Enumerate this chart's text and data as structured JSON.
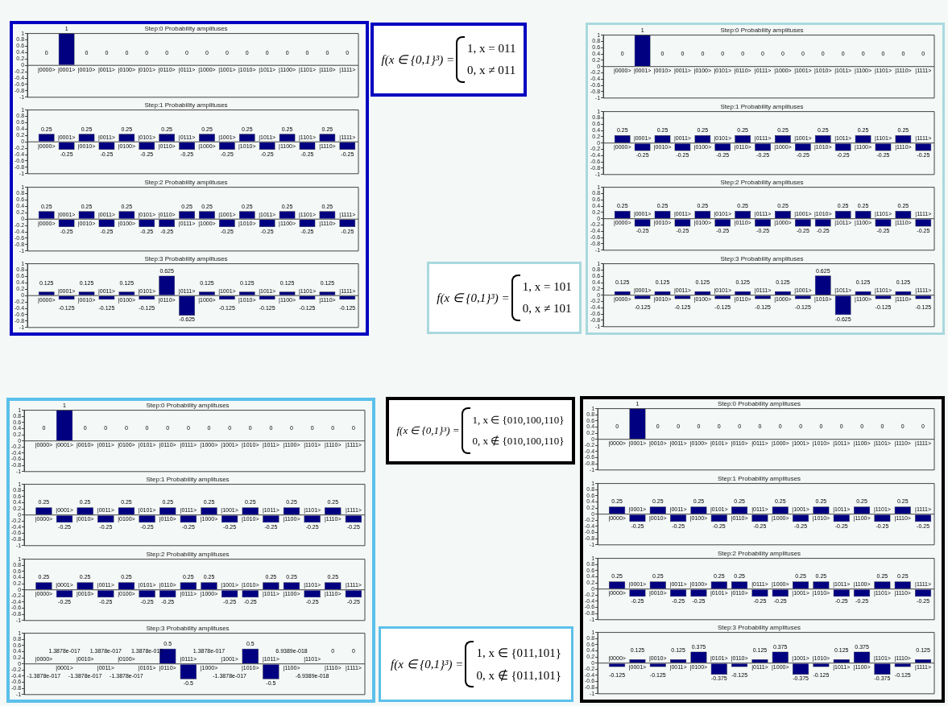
{
  "chart_data": [
    {
      "type": "bar",
      "title": "Step:0 Probability amplituses",
      "categories": [
        "|0000>",
        "|0001>",
        "|0010>",
        "|0011>",
        "|0100>",
        "|0101>",
        "|0110>",
        "|0111>",
        "|1000>",
        "|1001>",
        "|1010>",
        "|1011>",
        "|1100>",
        "|1101>",
        "|1110>",
        "|1111>"
      ],
      "values": [
        0,
        1,
        0,
        0,
        0,
        0,
        0,
        0,
        0,
        0,
        0,
        0,
        0,
        0,
        0,
        0
      ],
      "color": "#000080",
      "ylim": [
        -1,
        1
      ],
      "yticks": [
        -1,
        -0.8,
        -0.6,
        -0.4,
        -0.2,
        0,
        0.2,
        0.4,
        0.6,
        0.8,
        1
      ],
      "data_labels": true
    },
    {
      "type": "bar",
      "title": "Step:1 Probability amplituses",
      "categories": [
        "|0000>",
        "|0001>",
        "|0010>",
        "|0011>",
        "|0100>",
        "|0101>",
        "|0110>",
        "|0111>",
        "|1000>",
        "|1001>",
        "|1010>",
        "|1011>",
        "|1100>",
        "|1101>",
        "|1110>",
        "|1111>"
      ],
      "values": [
        0.25,
        -0.25,
        0.25,
        -0.25,
        0.25,
        -0.25,
        0.25,
        -0.25,
        0.25,
        -0.25,
        0.25,
        -0.25,
        0.25,
        -0.25,
        0.25,
        -0.25
      ],
      "color": "#000080",
      "ylim": [
        -1,
        1
      ],
      "yticks": [
        -1,
        -0.8,
        -0.6,
        -0.4,
        -0.2,
        0,
        0.2,
        0.4,
        0.6,
        0.8,
        1
      ],
      "data_labels": true
    },
    {
      "type": "bar",
      "title": "Step:2 Probability amplituses",
      "categories": [
        "|0000>",
        "|0001>",
        "|0010>",
        "|0011>",
        "|0100>",
        "|0101>",
        "|0110>",
        "|0111>",
        "|1000>",
        "|1001>",
        "|1010>",
        "|1011>",
        "|1100>",
        "|1101>",
        "|1110>",
        "|1111>"
      ],
      "values": [
        0.25,
        -0.25,
        0.25,
        -0.25,
        0.25,
        -0.25,
        -0.25,
        0.25,
        0.25,
        -0.25,
        0.25,
        -0.25,
        0.25,
        -0.25,
        0.25,
        -0.25
      ],
      "color": "#000080",
      "ylim": [
        -1,
        1
      ],
      "yticks": [
        -1,
        -0.8,
        -0.6,
        -0.4,
        -0.2,
        0,
        0.2,
        0.4,
        0.6,
        0.8,
        1
      ],
      "data_labels": true
    },
    {
      "type": "bar",
      "title": "Step:3 Probability amplituses",
      "categories": [
        "|0000>",
        "|0001>",
        "|0010>",
        "|0011>",
        "|0100>",
        "|0101>",
        "|0110>",
        "|0111>",
        "|1000>",
        "|1001>",
        "|1010>",
        "|1011>",
        "|1100>",
        "|1101>",
        "|1110>",
        "|1111>"
      ],
      "values": [
        0.125,
        -0.125,
        0.125,
        -0.125,
        0.125,
        -0.125,
        0.625,
        -0.625,
        0.125,
        -0.125,
        0.125,
        -0.125,
        0.125,
        -0.125,
        0.125,
        -0.125
      ],
      "color": "#000080",
      "ylim": [
        -1,
        1
      ],
      "yticks": [
        -1,
        -0.8,
        -0.6,
        -0.4,
        -0.2,
        0,
        0.2,
        0.4,
        0.6,
        0.8,
        1
      ],
      "data_labels": true
    },
    {
      "type": "other",
      "title": "f(x ∈ {0,1}³) =",
      "annotations": [
        "1, x = 011",
        "0, x ≠ 011"
      ]
    },
    {
      "type": "bar",
      "title": "Step:0 Probability amplituses",
      "categories": [
        "|0000>",
        "|0001>",
        "|0010>",
        "|0011>",
        "|0100>",
        "|0101>",
        "|0110>",
        "|0111>",
        "|1000>",
        "|1001>",
        "|1010>",
        "|1011>",
        "|1100>",
        "|1101>",
        "|1110>",
        "|1111>"
      ],
      "values": [
        0,
        1,
        0,
        0,
        0,
        0,
        0,
        0,
        0,
        0,
        0,
        0,
        0,
        0,
        0,
        0
      ],
      "color": "#000080",
      "ylim": [
        -1,
        1
      ],
      "yticks": [
        -1,
        -0.8,
        -0.6,
        -0.4,
        -0.2,
        0,
        0.2,
        0.4,
        0.6,
        0.8,
        1
      ],
      "data_labels": true
    },
    {
      "type": "bar",
      "title": "Step:1 Probability amplituses",
      "categories": [
        "|0000>",
        "|0001>",
        "|0010>",
        "|0011>",
        "|0100>",
        "|0101>",
        "|0110>",
        "|0111>",
        "|1000>",
        "|1001>",
        "|1010>",
        "|1011>",
        "|1100>",
        "|1101>",
        "|1110>",
        "|1111>"
      ],
      "values": [
        0.25,
        -0.25,
        0.25,
        -0.25,
        0.25,
        -0.25,
        0.25,
        -0.25,
        0.25,
        -0.25,
        0.25,
        -0.25,
        0.25,
        -0.25,
        0.25,
        -0.25
      ],
      "color": "#000080",
      "ylim": [
        -1,
        1
      ],
      "yticks": [
        -1,
        -0.8,
        -0.6,
        -0.4,
        -0.2,
        0,
        0.2,
        0.4,
        0.6,
        0.8,
        1
      ],
      "data_labels": true
    },
    {
      "type": "bar",
      "title": "Step:2 Probability amplituses",
      "categories": [
        "|0000>",
        "|0001>",
        "|0010>",
        "|0011>",
        "|0100>",
        "|0101>",
        "|0110>",
        "|0111>",
        "|1000>",
        "|1001>",
        "|1010>",
        "|1011>",
        "|1100>",
        "|1101>",
        "|1110>",
        "|1111>"
      ],
      "values": [
        0.25,
        -0.25,
        0.25,
        -0.25,
        0.25,
        -0.25,
        0.25,
        -0.25,
        0.25,
        -0.25,
        -0.25,
        0.25,
        0.25,
        -0.25,
        0.25,
        -0.25
      ],
      "color": "#000080",
      "ylim": [
        -1,
        1
      ],
      "yticks": [
        -1,
        -0.8,
        -0.6,
        -0.4,
        -0.2,
        0,
        0.2,
        0.4,
        0.6,
        0.8,
        1
      ],
      "data_labels": true
    },
    {
      "type": "bar",
      "title": "Step:3 Probability amplituses",
      "categories": [
        "|0000>",
        "|0001>",
        "|0010>",
        "|0011>",
        "|0100>",
        "|0101>",
        "|0110>",
        "|0111>",
        "|1000>",
        "|1001>",
        "|1010>",
        "|1011>",
        "|1100>",
        "|1101>",
        "|1110>",
        "|1111>"
      ],
      "values": [
        0.125,
        -0.125,
        0.125,
        -0.125,
        0.125,
        -0.125,
        0.125,
        -0.125,
        0.125,
        -0.125,
        0.625,
        -0.625,
        0.125,
        -0.125,
        0.125,
        -0.125
      ],
      "color": "#000080",
      "ylim": [
        -1,
        1
      ],
      "yticks": [
        -1,
        -0.8,
        -0.6,
        -0.4,
        -0.2,
        0,
        0.2,
        0.4,
        0.6,
        0.8,
        1
      ],
      "data_labels": true
    },
    {
      "type": "other",
      "title": "f(x ∈ {0,1}³) =",
      "annotations": [
        "1, x = 101",
        "0, x ≠ 101"
      ]
    },
    {
      "type": "bar",
      "title": "Step:0 Probability amplituses",
      "categories": [
        "|0000>",
        "|0001>",
        "|0010>",
        "|0011>",
        "|0100>",
        "|0101>",
        "|0110>",
        "|0111>",
        "|1000>",
        "|1001>",
        "|1010>",
        "|1011>",
        "|1100>",
        "|1101>",
        "|1110>",
        "|1111>"
      ],
      "values": [
        0,
        1,
        0,
        0,
        0,
        0,
        0,
        0,
        0,
        0,
        0,
        0,
        0,
        0,
        0,
        0
      ],
      "color": "#000080",
      "ylim": [
        -1,
        1
      ],
      "yticks": [
        -1,
        -0.8,
        -0.6,
        -0.4,
        -0.2,
        0,
        0.2,
        0.4,
        0.6,
        0.8,
        1
      ],
      "data_labels": true
    },
    {
      "type": "bar",
      "title": "Step:1 Probability amplituses",
      "categories": [
        "|0000>",
        "|0001>",
        "|0010>",
        "|0011>",
        "|0100>",
        "|0101>",
        "|0110>",
        "|0111>",
        "|1000>",
        "|1001>",
        "|1010>",
        "|1011>",
        "|1100>",
        "|1101>",
        "|1110>",
        "|1111>"
      ],
      "values": [
        0.25,
        -0.25,
        0.25,
        -0.25,
        0.25,
        -0.25,
        0.25,
        -0.25,
        0.25,
        -0.25,
        0.25,
        -0.25,
        0.25,
        -0.25,
        0.25,
        -0.25
      ],
      "color": "#000080",
      "ylim": [
        -1,
        1
      ],
      "yticks": [
        -1,
        -0.8,
        -0.6,
        -0.4,
        -0.2,
        0,
        0.2,
        0.4,
        0.6,
        0.8,
        1
      ],
      "data_labels": true
    },
    {
      "type": "bar",
      "title": "Step:2 Probability amplituses",
      "categories": [
        "|0000>",
        "|0001>",
        "|0010>",
        "|0011>",
        "|0100>",
        "|0101>",
        "|0110>",
        "|0111>",
        "|1000>",
        "|1001>",
        "|1010>",
        "|1011>",
        "|1100>",
        "|1101>",
        "|1110>",
        "|1111>"
      ],
      "values": [
        0.25,
        -0.25,
        0.25,
        -0.25,
        0.25,
        -0.25,
        -0.25,
        0.25,
        0.25,
        -0.25,
        -0.25,
        0.25,
        0.25,
        -0.25,
        0.25,
        -0.25
      ],
      "color": "#000080",
      "ylim": [
        -1,
        1
      ],
      "yticks": [
        -1,
        -0.8,
        -0.6,
        -0.4,
        -0.2,
        0,
        0.2,
        0.4,
        0.6,
        0.8,
        1
      ],
      "data_labels": true
    },
    {
      "type": "bar",
      "title": "Step:3 Probability amplituses",
      "categories": [
        "|0000>",
        "|0001>",
        "|0010>",
        "|0011>",
        "|0100>",
        "|0101>",
        "|0110>",
        "|0111>",
        "|1000>",
        "|1001>",
        "|1010>",
        "|1011>",
        "|1100>",
        "|1101>",
        "|1110>",
        "|1111>"
      ],
      "values": [
        -1.3878e-17,
        1.3878e-17,
        -1.3878e-17,
        1.3878e-17,
        -1.3878e-17,
        1.3878e-17,
        0.5,
        -0.5,
        1.3878e-17,
        -1.3878e-17,
        0.5,
        -0.5,
        6.9389e-18,
        -6.9389e-18,
        0,
        0
      ],
      "value_labels": [
        "-1.3878e-017",
        "1.3878e-017",
        "-1.3878e-017",
        "1.3878e-017",
        "-1.3878e-017",
        "1.3878e-017",
        "0.5",
        "-0.5",
        "1.3878e-017",
        "-1.3878e-017",
        "0.5",
        "-0.5",
        "6.9389e-018",
        "-6.9389e-018",
        "0",
        "0"
      ],
      "color": "#000080",
      "ylim": [
        -1,
        1
      ],
      "yticks": [
        -1,
        -0.8,
        -0.6,
        -0.4,
        -0.2,
        0,
        0.2,
        0.4,
        0.6,
        0.8,
        1
      ]
    },
    {
      "type": "other",
      "title": "f(x ∈ {0,1}³) =",
      "annotations": [
        "1, x ∈ {010,100,110}",
        "0, x ∉ {010,100,110}"
      ]
    },
    {
      "type": "bar",
      "title": "Step:0 Probability amplituses",
      "categories": [
        "|0000>",
        "|0001>",
        "|0010>",
        "|0011>",
        "|0100>",
        "|0101>",
        "|0110>",
        "|0111>",
        "|1000>",
        "|1001>",
        "|1010>",
        "|1011>",
        "|1100>",
        "|1101>",
        "|1110>",
        "|1111>"
      ],
      "values": [
        0,
        1,
        0,
        0,
        0,
        0,
        0,
        0,
        0,
        0,
        0,
        0,
        0,
        0,
        0,
        0
      ],
      "color": "#000080",
      "ylim": [
        -1,
        1
      ],
      "yticks": [
        -1,
        -0.8,
        -0.6,
        -0.4,
        -0.2,
        0,
        0.2,
        0.4,
        0.6,
        0.8,
        1
      ],
      "data_labels": true
    },
    {
      "type": "bar",
      "title": "Step:1 Probability amplituses",
      "categories": [
        "|0000>",
        "|0001>",
        "|0010>",
        "|0011>",
        "|0100>",
        "|0101>",
        "|0110>",
        "|0111>",
        "|1000>",
        "|1001>",
        "|1010>",
        "|1011>",
        "|1100>",
        "|1101>",
        "|1110>",
        "|1111>"
      ],
      "values": [
        0.25,
        -0.25,
        0.25,
        -0.25,
        0.25,
        -0.25,
        0.25,
        -0.25,
        0.25,
        -0.25,
        0.25,
        -0.25,
        0.25,
        -0.25,
        0.25,
        -0.25
      ],
      "color": "#000080",
      "ylim": [
        -1,
        1
      ],
      "yticks": [
        -1,
        -0.8,
        -0.6,
        -0.4,
        -0.2,
        0,
        0.2,
        0.4,
        0.6,
        0.8,
        1
      ],
      "data_labels": true
    },
    {
      "type": "bar",
      "title": "Step:2 Probability amplituses",
      "categories": [
        "|0000>",
        "|0001>",
        "|0010>",
        "|0011>",
        "|0100>",
        "|0101>",
        "|0110>",
        "|0111>",
        "|1000>",
        "|1001>",
        "|1010>",
        "|1011>",
        "|1100>",
        "|1101>",
        "|1110>",
        "|1111>"
      ],
      "values": [
        0.25,
        -0.25,
        0.25,
        -0.25,
        -0.25,
        0.25,
        0.25,
        -0.25,
        -0.25,
        0.25,
        0.25,
        -0.25,
        -0.25,
        0.25,
        0.25,
        -0.25
      ],
      "color": "#000080",
      "ylim": [
        -1,
        1
      ],
      "yticks": [
        -1,
        -0.8,
        -0.6,
        -0.4,
        -0.2,
        0,
        0.2,
        0.4,
        0.6,
        0.8,
        1
      ],
      "data_labels": true
    },
    {
      "type": "bar",
      "title": "Step:3 Probability amplituses",
      "categories": [
        "|0000>",
        "|0001>",
        "|0010>",
        "|0011>",
        "|0100>",
        "|0101>",
        "|0110>",
        "|0111>",
        "|1000>",
        "|1001>",
        "|1010>",
        "|1011>",
        "|1100>",
        "|1101>",
        "|1110>",
        "|1111>"
      ],
      "values": [
        -0.125,
        0.125,
        -0.125,
        0.125,
        0.375,
        -0.375,
        -0.125,
        0.125,
        0.375,
        -0.375,
        -0.125,
        0.125,
        0.375,
        -0.375,
        -0.125,
        0.125
      ],
      "color": "#000080",
      "ylim": [
        -1,
        1
      ],
      "yticks": [
        -1,
        -0.8,
        -0.6,
        -0.4,
        -0.2,
        0,
        0.2,
        0.4,
        0.6,
        0.8,
        1
      ],
      "data_labels": true
    },
    {
      "type": "other",
      "title": "f(x ∈ {0,1}³) =",
      "annotations": [
        "1, x ∈ {011,101}",
        "0, x ∉ {011,101}"
      ]
    }
  ]
}
